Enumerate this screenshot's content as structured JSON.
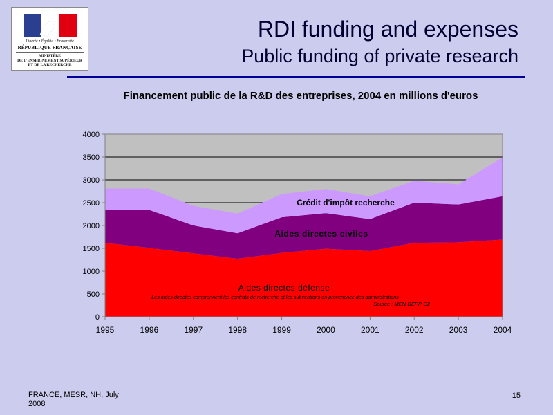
{
  "logo": {
    "motto": "Liberté • Égalité • Fraternité",
    "republique": "RÉPUBLIQUE FRANÇAISE",
    "ministry_line1": "MINISTÈRE",
    "ministry_line2": "DE L'ENSEIGNEMENT SUPÉRIEUR",
    "ministry_line3": "ET DE LA RECHERCHE",
    "colors": {
      "blue": "#2a3f8f",
      "white": "#ffffff",
      "red": "#e1000f"
    }
  },
  "header": {
    "title": "RDI funding and expenses",
    "subtitle": "Public funding of private research"
  },
  "footer": {
    "left": "FRANCE, MESR, NH, July 2008",
    "page_number": "15"
  },
  "chart_data": {
    "type": "area",
    "stacked": true,
    "title": "Financement public de la R&D des entreprises, 2004 en millions d'euros",
    "xlabel": "",
    "ylabel": "",
    "x": [
      "1995",
      "1996",
      "1997",
      "1998",
      "1999",
      "2000",
      "2001",
      "2002",
      "2003",
      "2004"
    ],
    "ylim": [
      0,
      4000
    ],
    "yticks": [
      0,
      500,
      1000,
      1500,
      2000,
      2500,
      3000,
      3500,
      4000
    ],
    "grid": true,
    "series": [
      {
        "name": "Aides directes défense",
        "color": "#ff0000",
        "values": [
          1620,
          1510,
          1390,
          1270,
          1400,
          1490,
          1440,
          1620,
          1630,
          1690
        ]
      },
      {
        "name": "Aides directes civiles",
        "color": "#800080",
        "values": [
          720,
          830,
          610,
          560,
          780,
          780,
          700,
          880,
          830,
          950
        ]
      },
      {
        "name": "Crédit d'impôt recherche",
        "color": "#cc99ff",
        "values": [
          470,
          470,
          430,
          430,
          510,
          530,
          500,
          480,
          440,
          850
        ]
      }
    ],
    "note": "Les aides directes comprennent les contrats de recherche et les subventions en provenance des administrations",
    "source": "Source : MEN-DEPP-C2",
    "colors": {
      "plot_background": "#c0c0c0",
      "grid": "#000000",
      "axis": "#808080"
    }
  }
}
